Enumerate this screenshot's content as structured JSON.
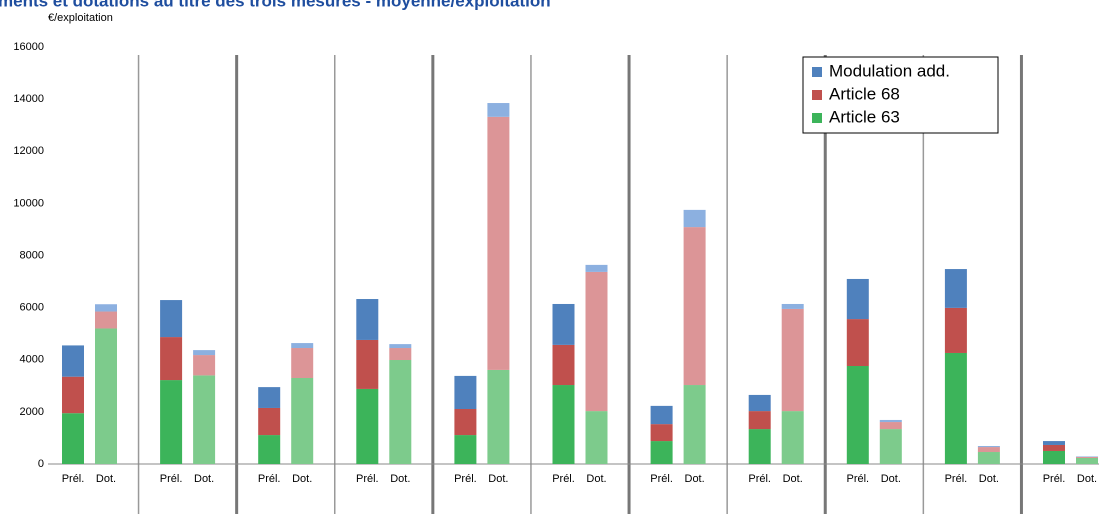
{
  "chart_data": {
    "type": "stacked_bar",
    "title": "ments et dotations au titre des trois mesures - moyenne/exploitation",
    "y_label": "€/exploitation",
    "categories": [
      "Prél.",
      "Dot.",
      "Prél.",
      "Dot.",
      "Prél.",
      "Dot.",
      "Prél.",
      "Dot.",
      "Prél.",
      "Dot.",
      "Prél.",
      "Dot.",
      "Prél.",
      "Dot.",
      "Prél.",
      "Dot.",
      "Prél.",
      "Dot.",
      "Prél.",
      "Dot.",
      "Prél.",
      "Dot."
    ],
    "series": [
      {
        "name": "Article 63",
        "color": "#3cb45a",
        "dot_color": "#7dcb8c",
        "values": [
          1950,
          5200,
          3220,
          3400,
          1110,
          3300,
          2880,
          3990,
          1110,
          3610,
          3030,
          2030,
          880,
          3030,
          1340,
          2030,
          3760,
          1340,
          4260,
          460,
          500,
          230
        ]
      },
      {
        "name": "Article 68",
        "color": "#c0504d",
        "dot_color": "#dc9597",
        "values": [
          1400,
          650,
          1650,
          780,
          1040,
          1150,
          1880,
          460,
          1000,
          9710,
          1540,
          5340,
          650,
          6060,
          690,
          3920,
          1800,
          270,
          1730,
          190,
          230,
          40
        ]
      },
      {
        "name": "Modulation add.",
        "color": "#4f81bd",
        "dot_color": "#8cb0e0",
        "values": [
          1200,
          280,
          1420,
          190,
          800,
          190,
          1570,
          150,
          1270,
          530,
          1570,
          270,
          700,
          660,
          620,
          190,
          1540,
          80,
          1490,
          40,
          150,
          20
        ]
      }
    ],
    "ylim": [
      0,
      16000
    ],
    "yticks": [
      0,
      2000,
      4000,
      6000,
      8000,
      10000,
      12000,
      14000,
      16000
    ],
    "legend": "top-right",
    "grid": false
  }
}
